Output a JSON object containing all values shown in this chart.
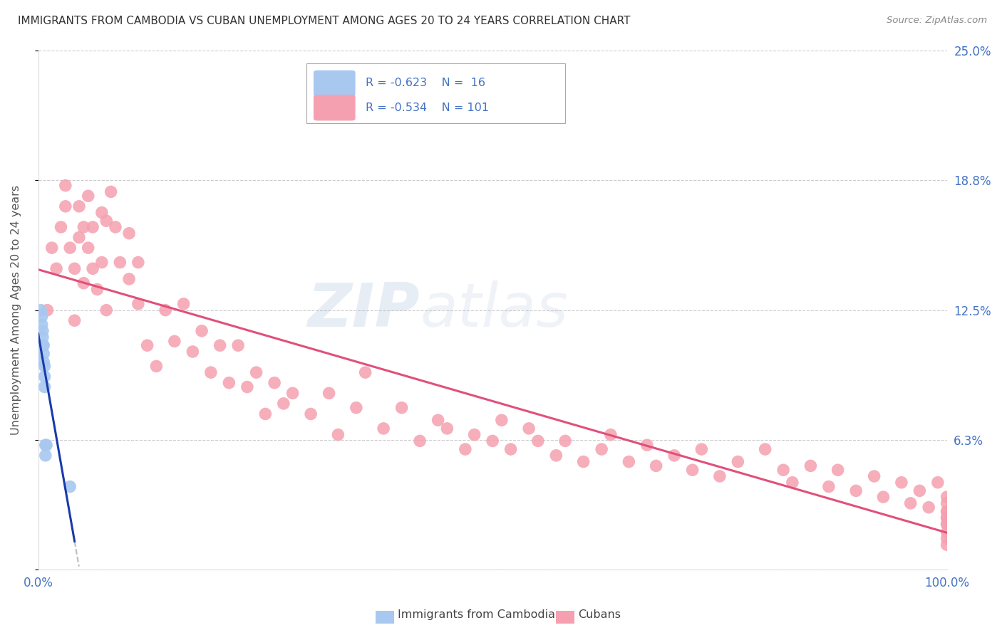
{
  "title": "IMMIGRANTS FROM CAMBODIA VS CUBAN UNEMPLOYMENT AMONG AGES 20 TO 24 YEARS CORRELATION CHART",
  "source": "Source: ZipAtlas.com",
  "ylabel": "Unemployment Among Ages 20 to 24 years",
  "xlim": [
    0,
    1.0
  ],
  "ylim": [
    0,
    0.25
  ],
  "yticks": [
    0.0,
    0.0625,
    0.125,
    0.1875,
    0.25
  ],
  "ytick_labels": [
    "",
    "6.3%",
    "12.5%",
    "18.8%",
    "25.0%"
  ],
  "xtick_labels": [
    "0.0%",
    "100.0%"
  ],
  "legend_r_cambodia": "R = -0.623",
  "legend_n_cambodia": "N =  16",
  "legend_r_cubans": "R = -0.534",
  "legend_n_cubans": "N = 101",
  "legend_label_cambodia": "Immigrants from Cambodia",
  "legend_label_cubans": "Cubans",
  "cambodia_color": "#a8c8f0",
  "cubans_color": "#f5a0b0",
  "cambodia_line_color": "#1a3aab",
  "cubans_line_color": "#e0507a",
  "watermark_zip": "ZIP",
  "watermark_atlas": "atlas",
  "background_color": "#ffffff",
  "grid_color": "#cccccc",
  "title_color": "#333333",
  "axis_label_color": "#555555",
  "tick_color": "#4472c4",
  "cambodia_x": [
    0.003,
    0.004,
    0.004,
    0.005,
    0.005,
    0.005,
    0.006,
    0.006,
    0.006,
    0.007,
    0.007,
    0.007,
    0.008,
    0.008,
    0.009,
    0.035
  ],
  "cambodia_y": [
    0.125,
    0.122,
    0.118,
    0.115,
    0.112,
    0.108,
    0.108,
    0.104,
    0.1,
    0.098,
    0.093,
    0.088,
    0.06,
    0.055,
    0.06,
    0.04
  ],
  "cubans_x": [
    0.01,
    0.015,
    0.02,
    0.025,
    0.03,
    0.03,
    0.035,
    0.04,
    0.04,
    0.045,
    0.045,
    0.05,
    0.05,
    0.055,
    0.055,
    0.06,
    0.06,
    0.065,
    0.07,
    0.07,
    0.075,
    0.075,
    0.08,
    0.085,
    0.09,
    0.1,
    0.1,
    0.11,
    0.11,
    0.12,
    0.13,
    0.14,
    0.15,
    0.16,
    0.17,
    0.18,
    0.19,
    0.2,
    0.21,
    0.22,
    0.23,
    0.24,
    0.25,
    0.26,
    0.27,
    0.28,
    0.3,
    0.32,
    0.33,
    0.35,
    0.36,
    0.38,
    0.4,
    0.42,
    0.44,
    0.45,
    0.47,
    0.48,
    0.5,
    0.51,
    0.52,
    0.54,
    0.55,
    0.57,
    0.58,
    0.6,
    0.62,
    0.63,
    0.65,
    0.67,
    0.68,
    0.7,
    0.72,
    0.73,
    0.75,
    0.77,
    0.8,
    0.82,
    0.83,
    0.85,
    0.87,
    0.88,
    0.9,
    0.92,
    0.93,
    0.95,
    0.96,
    0.97,
    0.98,
    0.99,
    1.0,
    1.0,
    1.0,
    1.0,
    1.0,
    1.0,
    1.0,
    1.0,
    1.0,
    1.0,
    1.0
  ],
  "cubans_y": [
    0.125,
    0.155,
    0.145,
    0.165,
    0.175,
    0.185,
    0.155,
    0.12,
    0.145,
    0.16,
    0.175,
    0.138,
    0.165,
    0.155,
    0.18,
    0.145,
    0.165,
    0.135,
    0.148,
    0.172,
    0.125,
    0.168,
    0.182,
    0.165,
    0.148,
    0.14,
    0.162,
    0.128,
    0.148,
    0.108,
    0.098,
    0.125,
    0.11,
    0.128,
    0.105,
    0.115,
    0.095,
    0.108,
    0.09,
    0.108,
    0.088,
    0.095,
    0.075,
    0.09,
    0.08,
    0.085,
    0.075,
    0.085,
    0.065,
    0.078,
    0.095,
    0.068,
    0.078,
    0.062,
    0.072,
    0.068,
    0.058,
    0.065,
    0.062,
    0.072,
    0.058,
    0.068,
    0.062,
    0.055,
    0.062,
    0.052,
    0.058,
    0.065,
    0.052,
    0.06,
    0.05,
    0.055,
    0.048,
    0.058,
    0.045,
    0.052,
    0.058,
    0.048,
    0.042,
    0.05,
    0.04,
    0.048,
    0.038,
    0.045,
    0.035,
    0.042,
    0.032,
    0.038,
    0.03,
    0.042,
    0.025,
    0.035,
    0.028,
    0.032,
    0.022,
    0.028,
    0.018,
    0.025,
    0.015,
    0.022,
    0.012
  ]
}
